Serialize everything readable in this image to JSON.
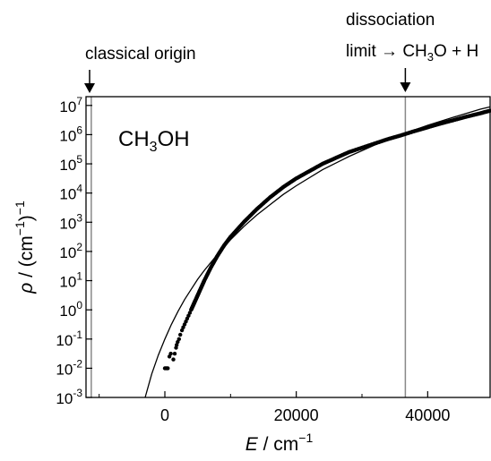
{
  "chart_data": {
    "type": "scatter",
    "y_scale": "log",
    "xlim": [
      -12000,
      49500
    ],
    "ylim_exponent": [
      -3,
      7.3
    ],
    "x_ticks": [
      {
        "value": 0,
        "label": "0"
      },
      {
        "value": 20000,
        "label": "20000"
      },
      {
        "value": 40000,
        "label": "40000"
      }
    ],
    "y_ticks": [
      {
        "exp": 7,
        "label": "10",
        "sup": "7"
      },
      {
        "exp": 6,
        "label": "10",
        "sup": "6"
      },
      {
        "exp": 5,
        "label": "10",
        "sup": "5"
      },
      {
        "exp": 4,
        "label": "10",
        "sup": "4"
      },
      {
        "exp": 3,
        "label": "10",
        "sup": "3"
      },
      {
        "exp": 2,
        "label": "10",
        "sup": "2"
      },
      {
        "exp": 1,
        "label": "10",
        "sup": "1"
      },
      {
        "exp": 0,
        "label": "10",
        "sup": "0"
      },
      {
        "exp": -1,
        "label": "10",
        "sup": "-1"
      },
      {
        "exp": -2,
        "label": "10",
        "sup": "-2"
      },
      {
        "exp": -3,
        "label": "10",
        "sup": "-3"
      }
    ],
    "xlabel": {
      "var": "E",
      "rest": " / cm",
      "sup": "−1"
    },
    "ylabel": {
      "var": "ρ",
      "rest1": " / (cm",
      "sup1": "−1",
      "rest2": ")",
      "sup2": "−1"
    },
    "molecule_label": {
      "pre": "CH",
      "sub": "3",
      "post": "OH"
    },
    "vlines": [
      {
        "x": -11200,
        "label": "classical origin"
      },
      {
        "x": 36600,
        "label_line1": "dissociation",
        "label_line2_pre": "limit → CH",
        "label_line2_sub": "3",
        "label_line2_post": "O + H"
      }
    ],
    "series": [
      {
        "kind": "points",
        "points": [
          [
            0,
            -2.0
          ],
          [
            150,
            -2.0
          ],
          [
            300,
            -2.0
          ],
          [
            450,
            -2.0
          ],
          [
            700,
            -1.6
          ],
          [
            900,
            -1.5
          ],
          [
            1300,
            -1.7
          ],
          [
            1500,
            -1.5
          ],
          [
            1700,
            -1.3
          ],
          [
            1800,
            -1.2
          ],
          [
            1950,
            -1.1
          ],
          [
            2150,
            -1.0
          ],
          [
            2350,
            -0.85
          ],
          [
            2600,
            -0.7
          ],
          [
            2800,
            -0.6
          ],
          [
            3000,
            -0.5
          ],
          [
            3200,
            -0.4
          ],
          [
            3400,
            -0.3
          ],
          [
            3600,
            -0.2
          ],
          [
            3800,
            -0.1
          ],
          [
            4000,
            0.0
          ],
          [
            4300,
            0.15
          ],
          [
            4600,
            0.3
          ],
          [
            5000,
            0.5
          ],
          [
            5500,
            0.75
          ],
          [
            6000,
            1.0
          ],
          [
            7000,
            1.45
          ],
          [
            8000,
            1.85
          ],
          [
            9000,
            2.2
          ],
          [
            10000,
            2.5
          ],
          [
            12000,
            3.0
          ],
          [
            14000,
            3.45
          ],
          [
            16000,
            3.85
          ],
          [
            18000,
            4.2
          ],
          [
            20000,
            4.5
          ],
          [
            22000,
            4.75
          ],
          [
            24000,
            5.0
          ],
          [
            26000,
            5.2
          ],
          [
            28000,
            5.4
          ],
          [
            30000,
            5.55
          ],
          [
            32000,
            5.7
          ],
          [
            34000,
            5.85
          ],
          [
            36000,
            5.98
          ],
          [
            38000,
            6.12
          ],
          [
            40000,
            6.25
          ],
          [
            42000,
            6.38
          ],
          [
            44000,
            6.5
          ],
          [
            46000,
            6.62
          ],
          [
            48000,
            6.73
          ],
          [
            49500,
            6.82
          ]
        ]
      },
      {
        "kind": "line",
        "points": [
          [
            -3000,
            -3.0
          ],
          [
            -2000,
            -2.2
          ],
          [
            -1000,
            -1.55
          ],
          [
            0,
            -1.0
          ],
          [
            1000,
            -0.5
          ],
          [
            2000,
            -0.05
          ],
          [
            3000,
            0.35
          ],
          [
            4000,
            0.7
          ],
          [
            5000,
            1.05
          ],
          [
            6000,
            1.35
          ],
          [
            8000,
            1.9
          ],
          [
            10000,
            2.4
          ],
          [
            12000,
            2.85
          ],
          [
            14000,
            3.25
          ],
          [
            16000,
            3.6
          ],
          [
            18000,
            3.95
          ],
          [
            20000,
            4.25
          ],
          [
            24000,
            4.8
          ],
          [
            28000,
            5.25
          ],
          [
            32000,
            5.65
          ],
          [
            36000,
            6.0
          ],
          [
            40000,
            6.32
          ],
          [
            44000,
            6.6
          ],
          [
            48000,
            6.87
          ],
          [
            49500,
            6.95
          ]
        ]
      }
    ]
  }
}
